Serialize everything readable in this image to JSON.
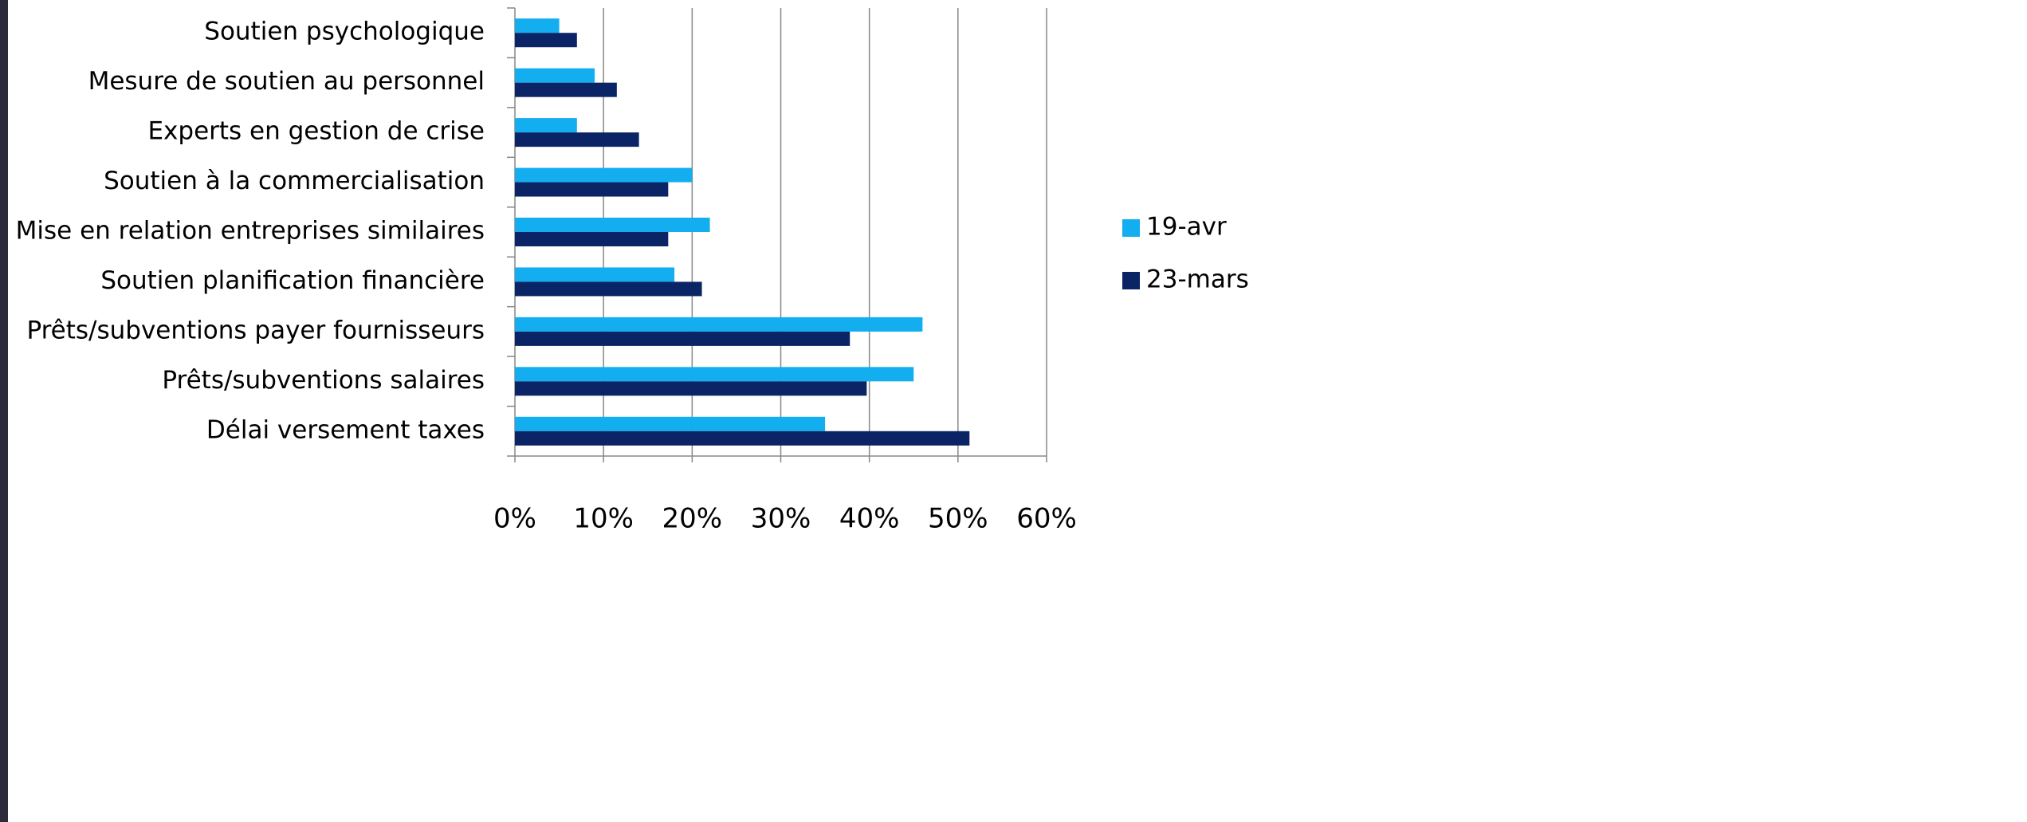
{
  "chart_data": {
    "type": "bar",
    "orientation": "horizontal",
    "categories": [
      "Soutien psychologique",
      "Mesure de soutien au personnel",
      "Experts en gestion de crise",
      "Soutien à la commercialisation",
      "Mise en relation entreprises similaires",
      "Soutien planification financière",
      "Prêts/subventions payer fournisseurs",
      "Prêts/subventions salaires",
      "Délai versement taxes"
    ],
    "series": [
      {
        "name": "19-avr",
        "color": "#12aef0",
        "values": [
          5,
          9,
          7,
          20,
          22,
          18,
          46,
          45,
          35
        ]
      },
      {
        "name": "23-mars",
        "color": "#0b2466",
        "values": [
          7,
          11.5,
          14,
          17.3,
          17.3,
          21.1,
          37.8,
          39.7,
          51.3
        ]
      }
    ],
    "xlim": [
      0,
      60
    ],
    "xticks": [
      {
        "value": 0,
        "label": "0%"
      },
      {
        "value": 10,
        "label": "10%"
      },
      {
        "value": 20,
        "label": "20%"
      },
      {
        "value": 30,
        "label": "30%"
      },
      {
        "value": 40,
        "label": "40%"
      },
      {
        "value": 50,
        "label": "50%"
      },
      {
        "value": 60,
        "label": "60%"
      }
    ],
    "grid": true,
    "legend": "right"
  }
}
